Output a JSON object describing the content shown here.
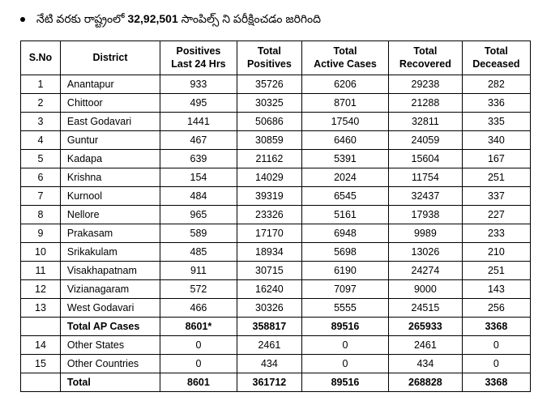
{
  "header": {
    "prefix": "నేటి వరకు రాష్ట్రంలో",
    "highlight": "32,92,501",
    "suffix": "సాంపిల్స్ ని పరీక్షించడం జరిగింది"
  },
  "columns": {
    "sno": "S.No",
    "district": "District",
    "positives24": "Positives\nLast 24 Hrs",
    "totalPositives": "Total\nPositives",
    "activeCases": "Total\nActive Cases",
    "recovered": "Total\nRecovered",
    "deceased": "Total\nDeceased"
  },
  "rows": [
    {
      "sno": "1",
      "district": "Anantapur",
      "p24": "933",
      "tp": "35726",
      "ac": "6206",
      "tr": "29238",
      "td": "282",
      "bold": false
    },
    {
      "sno": "2",
      "district": "Chittoor",
      "p24": "495",
      "tp": "30325",
      "ac": "8701",
      "tr": "21288",
      "td": "336",
      "bold": false
    },
    {
      "sno": "3",
      "district": "East Godavari",
      "p24": "1441",
      "tp": "50686",
      "ac": "17540",
      "tr": "32811",
      "td": "335",
      "bold": false
    },
    {
      "sno": "4",
      "district": "Guntur",
      "p24": "467",
      "tp": "30859",
      "ac": "6460",
      "tr": "24059",
      "td": "340",
      "bold": false
    },
    {
      "sno": "5",
      "district": "Kadapa",
      "p24": "639",
      "tp": "21162",
      "ac": "5391",
      "tr": "15604",
      "td": "167",
      "bold": false
    },
    {
      "sno": "6",
      "district": "Krishna",
      "p24": "154",
      "tp": "14029",
      "ac": "2024",
      "tr": "11754",
      "td": "251",
      "bold": false
    },
    {
      "sno": "7",
      "district": "Kurnool",
      "p24": "484",
      "tp": "39319",
      "ac": "6545",
      "tr": "32437",
      "td": "337",
      "bold": false
    },
    {
      "sno": "8",
      "district": "Nellore",
      "p24": "965",
      "tp": "23326",
      "ac": "5161",
      "tr": "17938",
      "td": "227",
      "bold": false
    },
    {
      "sno": "9",
      "district": "Prakasam",
      "p24": "589",
      "tp": "17170",
      "ac": "6948",
      "tr": "9989",
      "td": "233",
      "bold": false
    },
    {
      "sno": "10",
      "district": "Srikakulam",
      "p24": "485",
      "tp": "18934",
      "ac": "5698",
      "tr": "13026",
      "td": "210",
      "bold": false
    },
    {
      "sno": "11",
      "district": "Visakhapatnam",
      "p24": "911",
      "tp": "30715",
      "ac": "6190",
      "tr": "24274",
      "td": "251",
      "bold": false
    },
    {
      "sno": "12",
      "district": "Vizianagaram",
      "p24": "572",
      "tp": "16240",
      "ac": "7097",
      "tr": "9000",
      "td": "143",
      "bold": false
    },
    {
      "sno": "13",
      "district": "West Godavari",
      "p24": "466",
      "tp": "30326",
      "ac": "5555",
      "tr": "24515",
      "td": "256",
      "bold": false
    },
    {
      "sno": "",
      "district": "Total AP Cases",
      "p24": "8601*",
      "tp": "358817",
      "ac": "89516",
      "tr": "265933",
      "td": "3368",
      "bold": true
    },
    {
      "sno": "14",
      "district": "Other States",
      "p24": "0",
      "tp": "2461",
      "ac": "0",
      "tr": "2461",
      "td": "0",
      "bold": false
    },
    {
      "sno": "15",
      "district": "Other Countries",
      "p24": "0",
      "tp": "434",
      "ac": "0",
      "tr": "434",
      "td": "0",
      "bold": false
    },
    {
      "sno": "",
      "district": "Total",
      "p24": "8601",
      "tp": "361712",
      "ac": "89516",
      "tr": "268828",
      "td": "3368",
      "bold": true
    }
  ]
}
